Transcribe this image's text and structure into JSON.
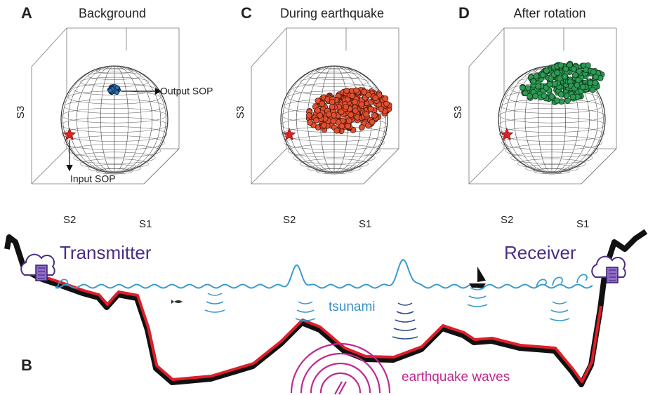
{
  "panels": [
    {
      "letter": "A",
      "title": "Background",
      "axes": {
        "s3": "S3",
        "s2": "S2",
        "s1": "S1"
      },
      "annotations": {
        "output": "Output SOP",
        "input": "Input SOP"
      }
    },
    {
      "letter": "C",
      "title": "During earthquake",
      "axes": {
        "s3": "S3",
        "s2": "S2",
        "s1": "S1"
      }
    },
    {
      "letter": "D",
      "title": "After rotation",
      "axes": {
        "s3": "S3",
        "s2": "S2",
        "s1": "S1"
      }
    }
  ],
  "cross_section": {
    "letter": "B",
    "transmitter": "Transmitter",
    "receiver": "Receiver",
    "tsunami": "tsunami",
    "earthquake_waves": "earthquake waves"
  }
}
